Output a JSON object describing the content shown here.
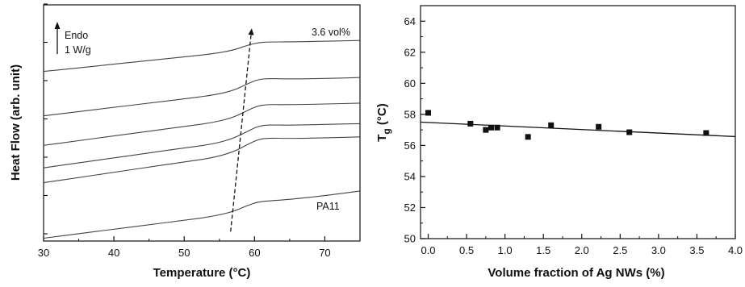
{
  "chart_data": [
    {
      "type": "line",
      "xlabel": "Temperature (°C)",
      "ylabel": "Heat Flow (arb. unit)",
      "xlim": [
        30,
        75
      ],
      "xticks": [
        "30",
        "40",
        "50",
        "60",
        "70"
      ],
      "ylim": [
        0,
        1
      ],
      "y_tick_labels": false,
      "annotations": {
        "scale_line1": "Endo",
        "scale_line2": "1 W/g",
        "top_curve_label": "3.6 vol%",
        "bottom_curve_label": "PA11"
      },
      "trend_arrow": {
        "from": [
          56.6,
          0.04
        ],
        "to": [
          59.6,
          0.9
        ],
        "style": "dashed"
      },
      "series": [
        {
          "x": [
            30,
            35,
            40,
            45,
            50,
            54,
            57,
            59,
            60.5,
            62,
            65,
            70,
            75
          ],
          "y": [
            0.718,
            0.733,
            0.749,
            0.764,
            0.78,
            0.792,
            0.808,
            0.829,
            0.84,
            0.843,
            0.843,
            0.846,
            0.849
          ]
        },
        {
          "x": [
            30,
            35,
            40,
            45,
            50,
            54,
            57,
            59,
            60.5,
            62,
            65,
            70,
            75
          ],
          "y": [
            0.53,
            0.548,
            0.566,
            0.584,
            0.602,
            0.617,
            0.637,
            0.666,
            0.684,
            0.688,
            0.686,
            0.688,
            0.692
          ]
        },
        {
          "x": [
            30,
            35,
            40,
            45,
            50,
            54,
            57,
            59,
            60.5,
            62,
            65,
            70,
            75
          ],
          "y": [
            0.405,
            0.425,
            0.445,
            0.465,
            0.485,
            0.501,
            0.523,
            0.553,
            0.573,
            0.578,
            0.577,
            0.58,
            0.584
          ]
        },
        {
          "x": [
            30,
            35,
            40,
            45,
            50,
            54,
            57,
            59,
            60.5,
            62,
            65,
            70,
            75
          ],
          "y": [
            0.31,
            0.331,
            0.352,
            0.373,
            0.394,
            0.41,
            0.434,
            0.465,
            0.486,
            0.492,
            0.49,
            0.494,
            0.497
          ]
        },
        {
          "x": [
            30,
            35,
            40,
            45,
            50,
            54,
            57,
            59,
            60.5,
            62,
            65,
            70,
            75
          ],
          "y": [
            0.247,
            0.269,
            0.291,
            0.313,
            0.335,
            0.352,
            0.377,
            0.409,
            0.43,
            0.436,
            0.434,
            0.437,
            0.441
          ]
        },
        {
          "x": [
            30,
            35,
            40,
            45,
            50,
            54,
            57,
            59,
            60.5,
            62,
            65,
            70,
            75
          ],
          "y": [
            0.012,
            0.031,
            0.05,
            0.069,
            0.088,
            0.104,
            0.125,
            0.151,
            0.166,
            0.17,
            0.176,
            0.192,
            0.212
          ]
        }
      ]
    },
    {
      "type": "scatter",
      "xlabel": "Volume fraction of Ag NWs (%)",
      "ylabel_main": "T",
      "ylabel_sub": "g",
      "ylabel_unit": " (°C)",
      "xlim": [
        -0.1,
        4.0
      ],
      "ylim": [
        50,
        65
      ],
      "xticks": [
        "0.0",
        "0.5",
        "1.0",
        "1.5",
        "2.0",
        "2.5",
        "3.0",
        "3.5",
        "4.0"
      ],
      "yticks": [
        "50",
        "52",
        "54",
        "56",
        "58",
        "60",
        "62",
        "64"
      ],
      "points": [
        {
          "x": 0.0,
          "y": 58.1
        },
        {
          "x": 0.55,
          "y": 57.4
        },
        {
          "x": 0.75,
          "y": 57.0
        },
        {
          "x": 0.82,
          "y": 57.15
        },
        {
          "x": 0.9,
          "y": 57.15
        },
        {
          "x": 1.3,
          "y": 56.55
        },
        {
          "x": 1.6,
          "y": 57.3
        },
        {
          "x": 2.22,
          "y": 57.2
        },
        {
          "x": 2.62,
          "y": 56.85
        },
        {
          "x": 3.62,
          "y": 56.8
        }
      ],
      "fit_line": {
        "x": [
          -0.1,
          4.0
        ],
        "y": [
          57.5,
          56.57
        ]
      }
    }
  ]
}
